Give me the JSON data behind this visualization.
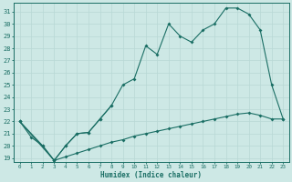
{
  "xlabel": "Humidex (Indice chaleur)",
  "bg_color": "#cde8e5",
  "line_color": "#1a6e64",
  "grid_color": "#b8d8d5",
  "xlim": [
    -0.5,
    23.5
  ],
  "ylim": [
    18.7,
    31.7
  ],
  "xticks": [
    0,
    1,
    2,
    3,
    4,
    5,
    6,
    7,
    8,
    9,
    10,
    11,
    12,
    13,
    14,
    15,
    16,
    17,
    18,
    19,
    20,
    21,
    22,
    23
  ],
  "yticks": [
    19,
    20,
    21,
    22,
    23,
    24,
    25,
    26,
    27,
    28,
    29,
    30,
    31
  ],
  "series1_x": [
    0,
    1,
    2,
    3,
    4,
    5,
    6,
    7,
    8
  ],
  "series1_y": [
    22.0,
    20.7,
    20.0,
    18.8,
    20.0,
    21.0,
    21.1,
    22.2,
    23.3
  ],
  "series2_x": [
    0,
    2,
    3,
    4,
    5,
    6,
    7,
    8,
    9,
    10,
    11,
    12,
    13,
    14,
    15,
    16,
    17,
    18,
    19,
    20,
    21,
    22,
    23
  ],
  "series2_y": [
    22.0,
    20.0,
    18.8,
    20.0,
    21.0,
    21.1,
    22.2,
    23.3,
    25.0,
    25.5,
    28.2,
    27.5,
    30.0,
    29.0,
    28.5,
    29.5,
    30.0,
    31.3,
    31.3,
    30.8,
    29.5,
    25.0,
    22.2
  ],
  "series3_x": [
    0,
    3,
    4,
    5,
    6,
    7,
    8,
    9,
    10,
    11,
    12,
    13,
    14,
    15,
    16,
    17,
    18,
    19,
    20,
    21,
    22,
    23
  ],
  "series3_y": [
    22.0,
    18.8,
    19.1,
    19.4,
    19.7,
    20.0,
    20.3,
    20.5,
    20.8,
    21.0,
    21.2,
    21.4,
    21.6,
    21.8,
    22.0,
    22.2,
    22.4,
    22.6,
    22.7,
    22.5,
    22.2,
    22.2
  ]
}
